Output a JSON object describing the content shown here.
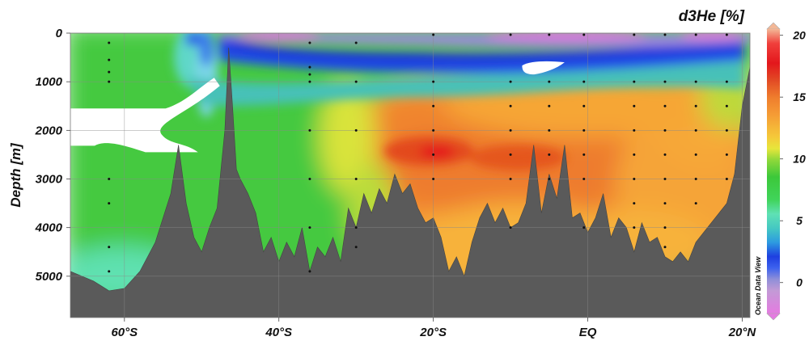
{
  "chart_data": {
    "type": "heatmap",
    "title": "d3He [%]",
    "xlabel": "",
    "ylabel": "Depth [m]",
    "x_ticks": [
      "60°S",
      "40°S",
      "20°S",
      "EQ",
      "20°N"
    ],
    "x_tick_values": [
      -60,
      -40,
      -20,
      0,
      20
    ],
    "y_ticks": [
      "0",
      "1000",
      "2000",
      "3000",
      "4000",
      "5000"
    ],
    "y_tick_values": [
      0,
      1000,
      2000,
      3000,
      4000,
      5000
    ],
    "xlim": [
      -67,
      21
    ],
    "ylim": [
      5850,
      0
    ],
    "colorbar": {
      "ticks": [
        "20",
        "15",
        "10",
        "5",
        "0"
      ],
      "tick_values": [
        20,
        15,
        10,
        5,
        0
      ],
      "range": [
        -2.5,
        20.5
      ]
    },
    "watermark": "Ocean Data View",
    "grid": true,
    "bathymetry": {
      "lat": [
        -67,
        -64,
        -62,
        -60,
        -58,
        -56,
        -54,
        -53,
        -52,
        -51,
        -50,
        -49,
        -48,
        -47,
        -46.5,
        -46,
        -45.5,
        -45,
        -44,
        -43,
        -42,
        -41,
        -40,
        -39,
        -38,
        -37,
        -36,
        -35,
        -34,
        -33,
        -32,
        -31,
        -30,
        -29,
        -28,
        -27,
        -26,
        -25,
        -24,
        -23,
        -22,
        -21,
        -20,
        -19,
        -18,
        -17,
        -16,
        -15,
        -14,
        -13,
        -12,
        -11,
        -10,
        -9,
        -8,
        -7,
        -6,
        -5,
        -4,
        -3,
        -2,
        -1,
        0,
        1,
        2,
        3,
        4,
        5,
        6,
        7,
        8,
        9,
        10,
        11,
        12,
        13,
        14,
        15,
        16,
        17,
        18,
        19,
        20,
        21
      ],
      "depth": [
        4900,
        5100,
        5300,
        5250,
        4900,
        4300,
        3300,
        2300,
        3500,
        4200,
        4500,
        4000,
        3600,
        2000,
        300,
        1500,
        2800,
        3000,
        3300,
        3700,
        4500,
        4200,
        4700,
        4300,
        4600,
        4000,
        4900,
        4400,
        4600,
        4200,
        4700,
        3600,
        4000,
        3300,
        3700,
        3200,
        3500,
        2900,
        3300,
        3100,
        3600,
        3900,
        3800,
        4200,
        4900,
        4600,
        5000,
        4300,
        3800,
        3500,
        3900,
        3600,
        4000,
        3900,
        3500,
        2300,
        3700,
        2900,
        3400,
        2300,
        3800,
        3700,
        4100,
        3800,
        3300,
        4200,
        3800,
        4000,
        4500,
        3900,
        4300,
        4200,
        4600,
        4700,
        4500,
        4700,
        4300,
        4100,
        3900,
        3700,
        3500,
        2900,
        1500,
        700
      ]
    },
    "missing_regions": [
      {
        "label": "blank-south",
        "lat_range": [
          -67,
          -51
        ],
        "depth_range": [
          1550,
          2450
        ]
      },
      {
        "label": "blank-eq-shallow",
        "lat_range": [
          -8.5,
          -3
        ],
        "depth_range": [
          600,
          850
        ]
      }
    ],
    "samples": {
      "note": "station sample dots",
      "stations": [
        -62,
        -36,
        -30,
        -20,
        -10,
        -5,
        -0.5,
        6,
        10,
        14,
        18
      ],
      "depths": [
        [
          200,
          550,
          800,
          1000,
          3000,
          3500,
          4400,
          4900
        ],
        [
          200,
          700,
          850,
          1000,
          2000,
          3000,
          4000,
          4900
        ],
        [
          200,
          1000,
          2000,
          3000,
          4000,
          4400
        ],
        [
          0,
          1000,
          1500,
          2000,
          2500,
          3000
        ],
        [
          0,
          1000,
          1500,
          2000,
          2500,
          3000,
          4000
        ],
        [
          0,
          1000,
          1500,
          2000,
          2500,
          3000
        ],
        [
          0,
          1000,
          1500,
          2000,
          2500,
          3000,
          4000
        ],
        [
          0,
          1000,
          1500,
          2000,
          2500,
          3000,
          3500,
          4000
        ],
        [
          0,
          1000,
          1500,
          2000,
          2500,
          3000,
          3500,
          4000,
          4400
        ],
        [
          0,
          1000,
          1500,
          2000,
          2500,
          3000,
          3500
        ],
        [
          0,
          1000,
          1500,
          2000,
          2500,
          3000
        ]
      ]
    }
  }
}
